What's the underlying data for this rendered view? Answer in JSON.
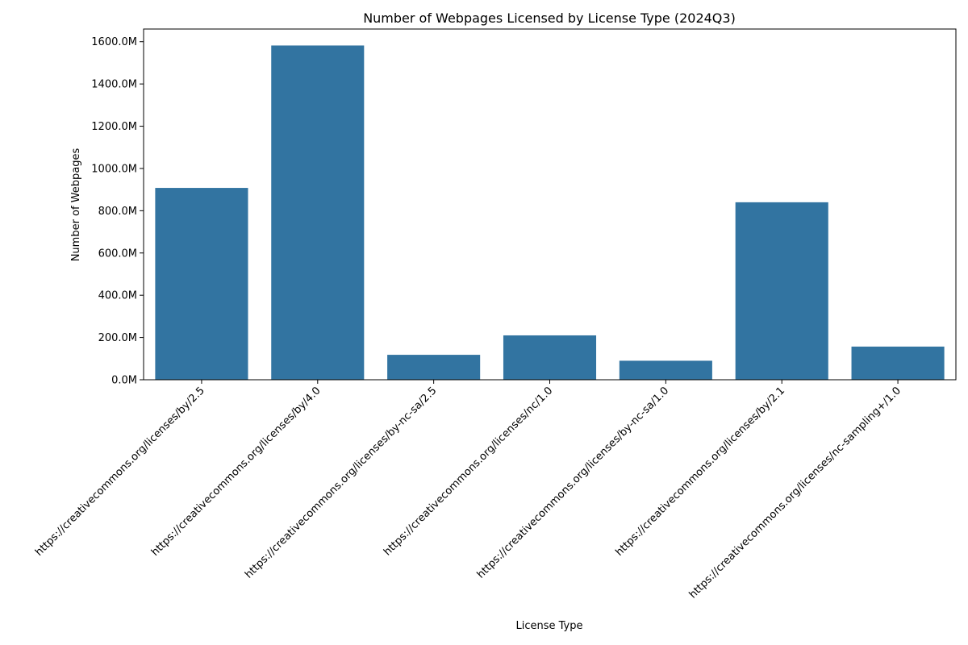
{
  "chart_data": {
    "type": "bar",
    "title": "Number of Webpages Licensed by License Type (2024Q3)",
    "xlabel": "License Type",
    "ylabel": "Number of Webpages",
    "categories": [
      "https://creativecommons.org/licenses/by/2.5",
      "https://creativecommons.org/licenses/by/4.0",
      "https://creativecommons.org/licenses/by-nc-sa/2.5",
      "https://creativecommons.org/licenses/nc/1.0",
      "https://creativecommons.org/licenses/by-nc-sa/1.0",
      "https://creativecommons.org/licenses/by/2.1",
      "https://creativecommons.org/licenses/nc-sampling+/1.0"
    ],
    "values": [
      908,
      1582,
      118,
      210,
      90,
      840,
      157
    ],
    "value_unit": "millions",
    "ylim": [
      0,
      1660
    ],
    "yticks": [
      0,
      200,
      400,
      600,
      800,
      1000,
      1200,
      1400,
      1600
    ],
    "ytick_labels": [
      "0.0M",
      "200.0M",
      "400.0M",
      "600.0M",
      "800.0M",
      "1000.0M",
      "1200.0M",
      "1400.0M",
      "1600.0M"
    ],
    "bar_color": "#3274a1",
    "grid": false,
    "legend": "none"
  }
}
